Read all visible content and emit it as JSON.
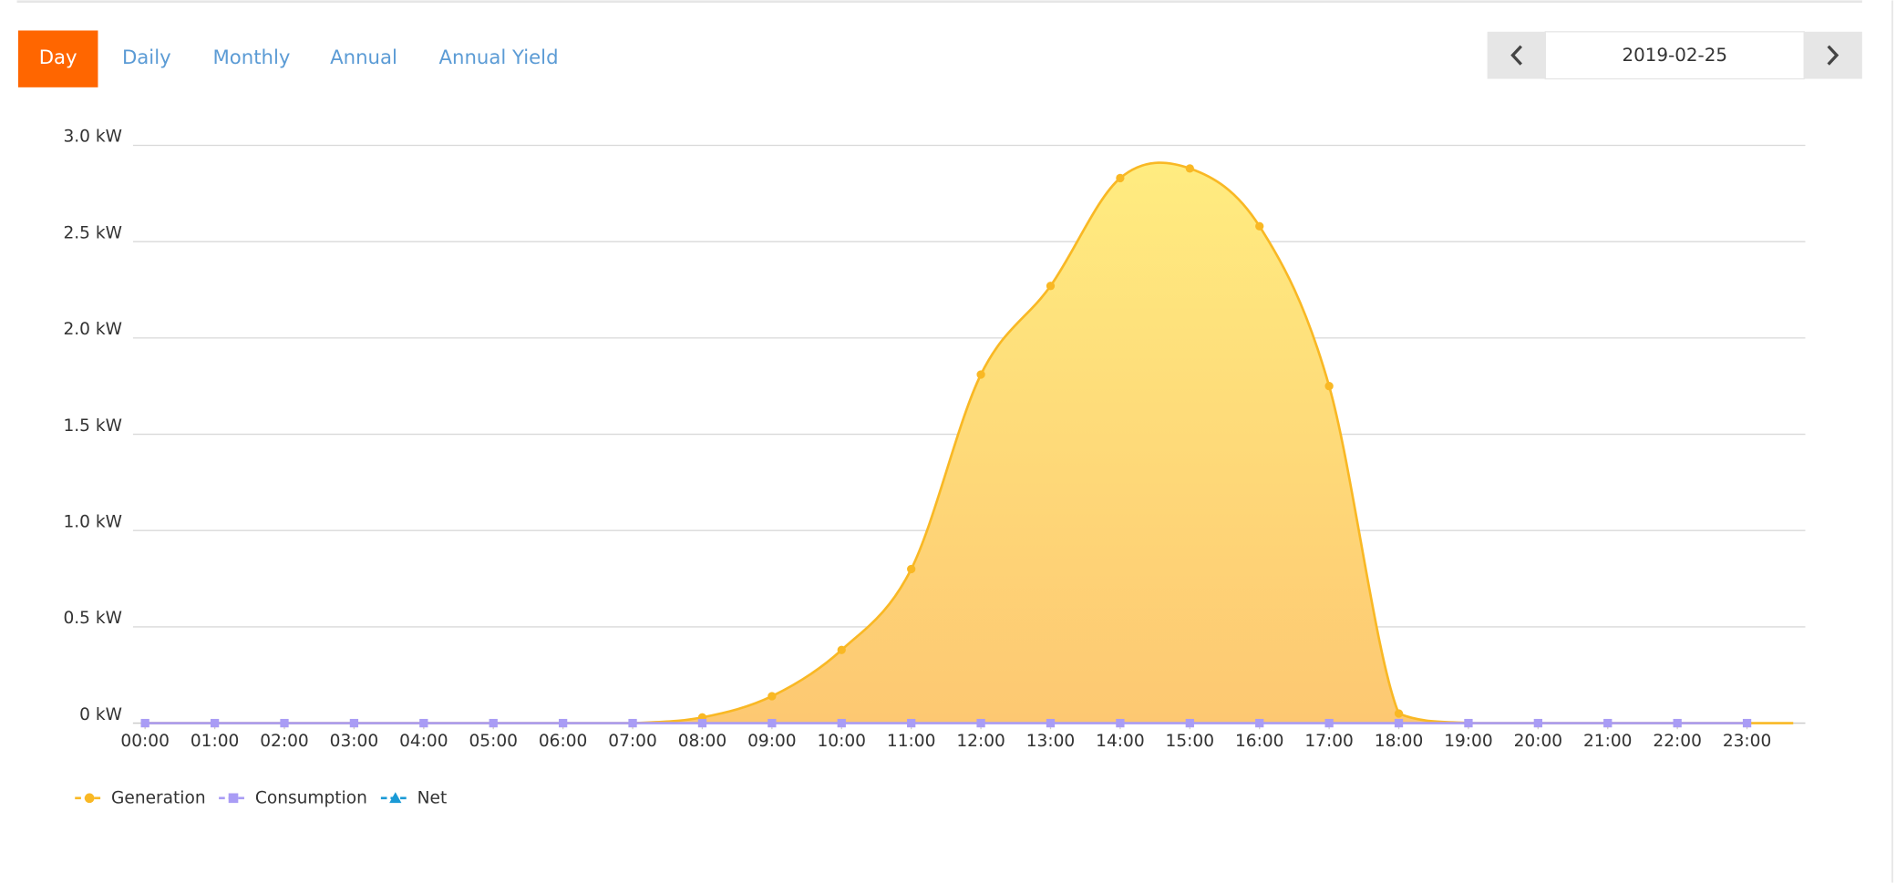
{
  "tabs": [
    "Day",
    "Daily",
    "Monthly",
    "Annual",
    "Annual Yield"
  ],
  "date": "2019-02-25",
  "chart_data": {
    "type": "area",
    "categories": [
      "00:00",
      "01:00",
      "02:00",
      "03:00",
      "04:00",
      "05:00",
      "06:00",
      "07:00",
      "08:00",
      "09:00",
      "10:00",
      "11:00",
      "12:00",
      "13:00",
      "14:00",
      "15:00",
      "16:00",
      "17:00",
      "18:00",
      "19:00",
      "20:00",
      "21:00",
      "22:00",
      "23:00"
    ],
    "series": [
      {
        "name": "Generation",
        "color": "#f9b824",
        "marker": "circle",
        "values": [
          0,
          0,
          0,
          0,
          0,
          0,
          0,
          0,
          0.03,
          0.14,
          0.38,
          0.8,
          1.81,
          2.27,
          2.83,
          2.88,
          2.58,
          1.75,
          0.05,
          0,
          0,
          0,
          0,
          0
        ]
      },
      {
        "name": "Consumption",
        "color": "#a99cf5",
        "marker": "square",
        "values": [
          0,
          0,
          0,
          0,
          0,
          0,
          0,
          0,
          0,
          0,
          0,
          0,
          0,
          0,
          0,
          0,
          0,
          0,
          0,
          0,
          0,
          0,
          0,
          0
        ]
      },
      {
        "name": "Net",
        "color": "#1a9ad6",
        "marker": "triangle",
        "values": [
          null,
          null,
          null,
          null,
          null,
          null,
          null,
          null,
          null,
          null,
          null,
          null,
          null,
          null,
          null,
          null,
          null,
          null,
          null,
          null,
          null,
          null,
          null,
          null
        ]
      }
    ],
    "ylim": [
      0,
      3.0
    ],
    "yticks": [
      {
        "value": 0,
        "label": "0 kW"
      },
      {
        "value": 0.5,
        "label": "0.5 kW"
      },
      {
        "value": 1.0,
        "label": "1.0 kW"
      },
      {
        "value": 1.5,
        "label": "1.5 kW"
      },
      {
        "value": 2.0,
        "label": "2.0 kW"
      },
      {
        "value": 2.5,
        "label": "2.5 kW"
      },
      {
        "value": 3.0,
        "label": "3.0 kW"
      }
    ],
    "grid": true,
    "legend": "bottom-left"
  }
}
